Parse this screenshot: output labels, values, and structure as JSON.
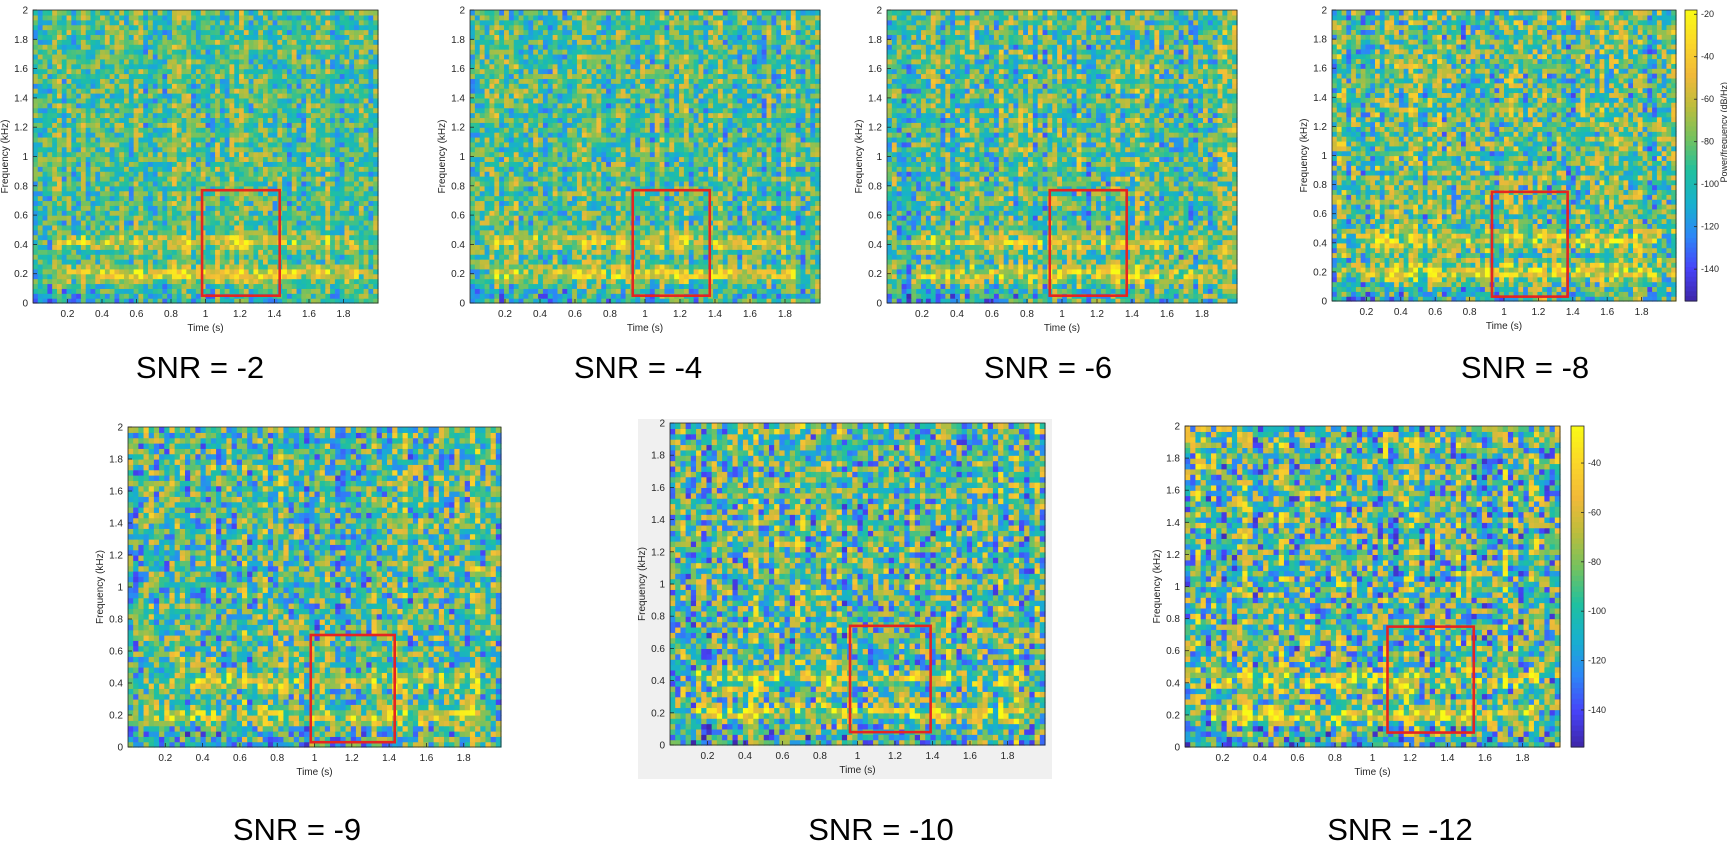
{
  "chart_data": [
    {
      "type": "heatmap",
      "title": "SNR = -2",
      "xlabel": "Time (s)",
      "ylabel": "Frequency (kHz)",
      "xlim": [
        0,
        2
      ],
      "ylim": [
        0,
        2
      ],
      "xticks": [
        "0.2",
        "0.4",
        "0.6",
        "0.8",
        "1",
        "1.2",
        "1.4",
        "1.6",
        "1.8"
      ],
      "yticks": [
        "0",
        "0.2",
        "0.4",
        "0.6",
        "0.8",
        "1",
        "1.2",
        "1.4",
        "1.6",
        "1.8",
        "2"
      ],
      "annotation": {
        "type": "rect",
        "x_range": [
          0.98,
          1.43
        ],
        "y_range": [
          0.05,
          0.77
        ],
        "color": "#e52421"
      },
      "seed": 11,
      "noise": 0.45
    },
    {
      "type": "heatmap",
      "title": "SNR = -4",
      "xlabel": "Time (s)",
      "ylabel": "Frequency (kHz)",
      "xlim": [
        0,
        2
      ],
      "ylim": [
        0,
        2
      ],
      "xticks": [
        "0.2",
        "0.4",
        "0.6",
        "0.8",
        "1",
        "1.2",
        "1.4",
        "1.6",
        "1.8"
      ],
      "yticks": [
        "0",
        "0.2",
        "0.4",
        "0.6",
        "0.8",
        "1",
        "1.2",
        "1.4",
        "1.6",
        "1.8",
        "2"
      ],
      "annotation": {
        "type": "rect",
        "x_range": [
          0.93,
          1.37
        ],
        "y_range": [
          0.05,
          0.77
        ],
        "color": "#e52421"
      },
      "seed": 23,
      "noise": 0.5
    },
    {
      "type": "heatmap",
      "title": "SNR = -6",
      "xlabel": "Time (s)",
      "ylabel": "Frequency (kHz)",
      "xlim": [
        0,
        2
      ],
      "ylim": [
        0,
        2
      ],
      "xticks": [
        "0.2",
        "0.4",
        "0.6",
        "0.8",
        "1",
        "1.2",
        "1.4",
        "1.6",
        "1.8"
      ],
      "yticks": [
        "0",
        "0.2",
        "0.4",
        "0.6",
        "0.8",
        "1",
        "1.2",
        "1.4",
        "1.6",
        "1.8",
        "2"
      ],
      "annotation": {
        "type": "rect",
        "x_range": [
          0.93,
          1.37
        ],
        "y_range": [
          0.05,
          0.77
        ],
        "color": "#e52421"
      },
      "seed": 37,
      "noise": 0.55
    },
    {
      "type": "heatmap",
      "title": "SNR = -8",
      "xlabel": "Time (s)",
      "ylabel": "Frequency (kHz)",
      "xlim": [
        0,
        2
      ],
      "ylim": [
        0,
        2
      ],
      "xticks": [
        "0.2",
        "0.4",
        "0.6",
        "0.8",
        "1",
        "1.2",
        "1.4",
        "1.6",
        "1.8"
      ],
      "yticks": [
        "0",
        "0.2",
        "0.4",
        "0.6",
        "0.8",
        "1",
        "1.2",
        "1.4",
        "1.6",
        "1.8",
        "2"
      ],
      "annotation": {
        "type": "rect",
        "x_range": [
          0.93,
          1.37
        ],
        "y_range": [
          0.03,
          0.75
        ],
        "color": "#e52421"
      },
      "colorbar": {
        "label": "Power/frequency (dB/Hz)",
        "ticks": [
          -20,
          -40,
          -60,
          -80,
          -100,
          -120,
          -140
        ],
        "range": [
          -155,
          -18
        ]
      },
      "seed": 41,
      "noise": 0.6
    },
    {
      "type": "heatmap",
      "title": "SNR = -9",
      "xlabel": "Time (s)",
      "ylabel": "Frequency (kHz)",
      "xlim": [
        0,
        2
      ],
      "ylim": [
        0,
        2
      ],
      "xticks": [
        "0.2",
        "0.4",
        "0.6",
        "0.8",
        "1",
        "1.2",
        "1.4",
        "1.6",
        "1.8"
      ],
      "yticks": [
        "0",
        "0.2",
        "0.4",
        "0.6",
        "0.8",
        "1",
        "1.2",
        "1.4",
        "1.6",
        "1.8",
        "2"
      ],
      "annotation": {
        "type": "rect",
        "x_range": [
          0.98,
          1.43
        ],
        "y_range": [
          0.03,
          0.7
        ],
        "color": "#e52421"
      },
      "seed": 53,
      "noise": 0.65
    },
    {
      "type": "heatmap",
      "title": "SNR = -10",
      "xlabel": "Time (s)",
      "ylabel": "Frequency (kHz)",
      "xlim": [
        0,
        2
      ],
      "ylim": [
        0,
        2
      ],
      "xticks": [
        "0.2",
        "0.4",
        "0.6",
        "0.8",
        "1",
        "1.2",
        "1.4",
        "1.6",
        "1.8"
      ],
      "yticks": [
        "0",
        "0.2",
        "0.4",
        "0.6",
        "0.8",
        "1",
        "1.2",
        "1.4",
        "1.6",
        "1.8",
        "2"
      ],
      "annotation": {
        "type": "rect",
        "x_range": [
          0.96,
          1.39
        ],
        "y_range": [
          0.08,
          0.74
        ],
        "color": "#e52421"
      },
      "seed": 67,
      "noise": 0.7
    },
    {
      "type": "heatmap",
      "title": "SNR = -12",
      "xlabel": "Time (s)",
      "ylabel": "Frequency (kHz)",
      "xlim": [
        0,
        2
      ],
      "ylim": [
        0,
        2
      ],
      "xticks": [
        "0.2",
        "0.4",
        "0.6",
        "0.8",
        "1",
        "1.2",
        "1.4",
        "1.6",
        "1.8"
      ],
      "yticks": [
        "0",
        "0.2",
        "0.4",
        "0.6",
        "0.8",
        "1",
        "1.2",
        "1.4",
        "1.6",
        "1.8",
        "2"
      ],
      "annotation": {
        "type": "rect",
        "x_range": [
          1.08,
          1.54
        ],
        "y_range": [
          0.09,
          0.75
        ],
        "color": "#e52421"
      },
      "colorbar": {
        "label": "",
        "ticks": [
          -40,
          -60,
          -80,
          -100,
          -120,
          -140
        ],
        "range": [
          -155,
          -25
        ]
      },
      "seed": 79,
      "noise": 0.75
    }
  ],
  "colors": {
    "parula": [
      "#3e26a8",
      "#4743f8",
      "#2d87f7",
      "#17b0ce",
      "#1fc0a0",
      "#72c260",
      "#bcbd3c",
      "#f1b939",
      "#fbd828",
      "#f9fb15"
    ],
    "annotation": "#e52421",
    "axis": "#262626"
  }
}
